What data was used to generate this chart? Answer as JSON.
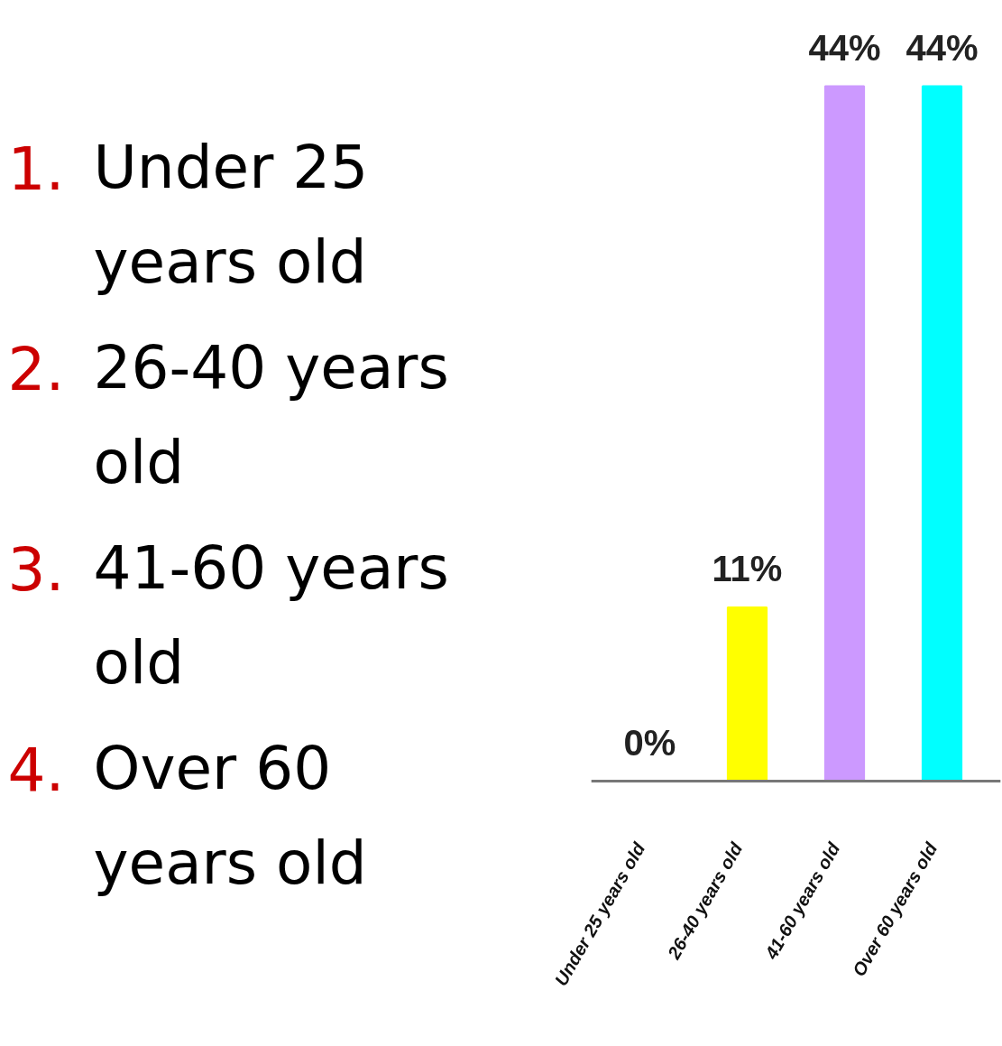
{
  "chart_data": {
    "type": "bar",
    "categories": [
      "Under 25 years old",
      "26-40 years old",
      "41-60 years old",
      "Over 60 years old"
    ],
    "values": [
      0,
      11,
      44,
      44
    ],
    "colors": [
      "#cc0000",
      "#ffff00",
      "#cc99ff",
      "#00ffff"
    ],
    "value_labels": [
      "0%",
      "11%",
      "44%",
      "44%"
    ],
    "annotations": [
      "1. Under 25 years old",
      "2. 26-40 years old",
      "3. 41-60 years old",
      "4. Over 60 years old"
    ],
    "grid": false
  }
}
